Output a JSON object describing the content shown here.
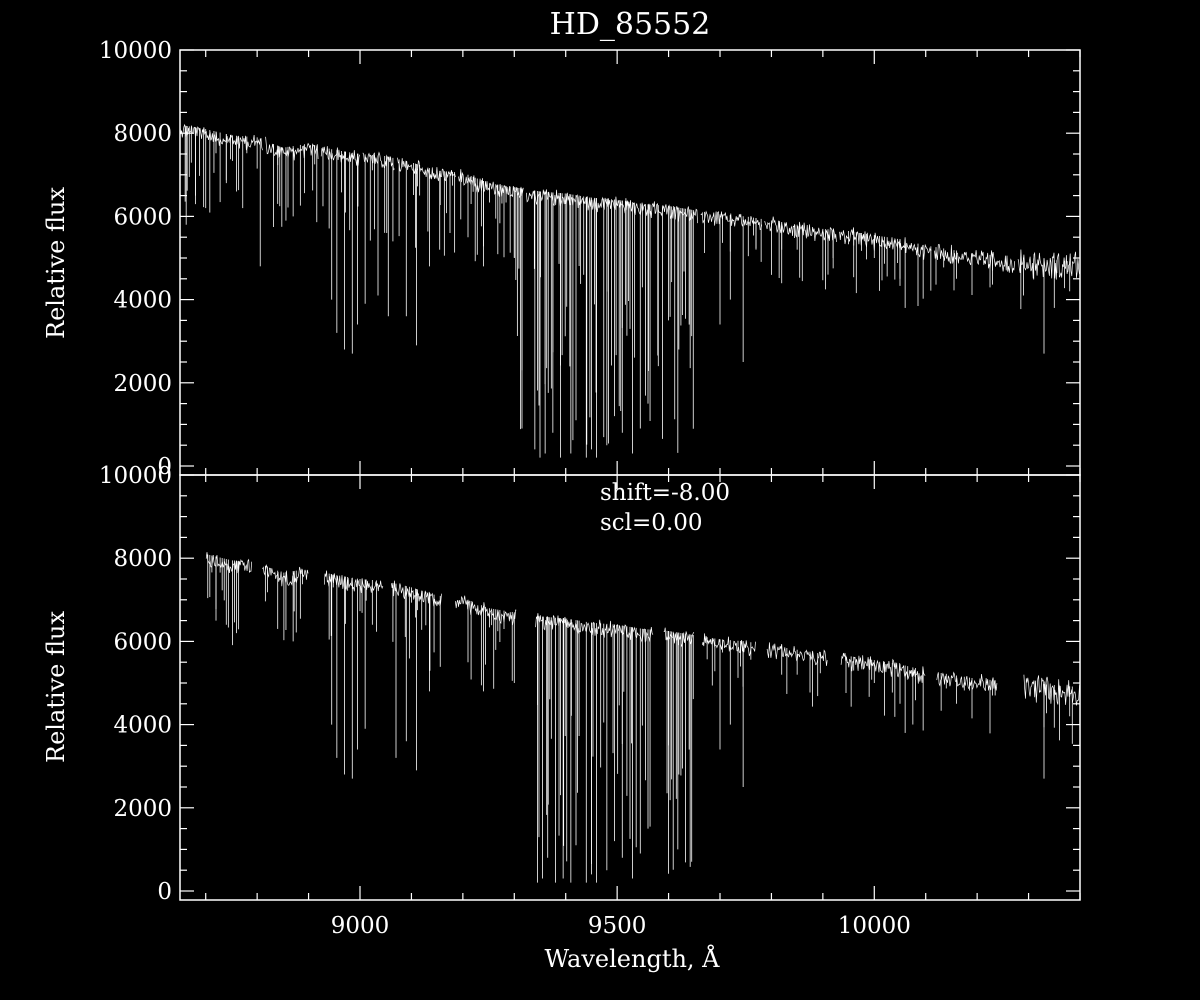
{
  "chart_data": {
    "type": "line",
    "title": "HD_85552",
    "xlabel": "Wavelength, Å",
    "xlim": [
      8650,
      10400
    ],
    "x_ticks": [
      9000,
      9500,
      10000
    ],
    "x_tick_labels": [
      "9000",
      "9500",
      "10000"
    ],
    "panels": [
      {
        "ylabel": "Relative flux",
        "ylim": [
          0,
          10000
        ],
        "y_ticks": [
          0,
          2000,
          4000,
          6000,
          8000,
          10000
        ],
        "y_tick_labels": [
          "0",
          "2000",
          "4000",
          "6000",
          "8000",
          "10000"
        ],
        "annotations": [],
        "gaps": [
          [
            8812,
            8816
          ],
          [
            8920,
            8924
          ],
          [
            9000,
            9004
          ],
          [
            9068,
            9072
          ],
          [
            9186,
            9190
          ],
          [
            9318,
            9322
          ],
          [
            9658,
            9662
          ],
          [
            9782,
            9786
          ],
          [
            9928,
            9932
          ],
          [
            10112,
            10116
          ],
          [
            10274,
            10278
          ]
        ],
        "continuum": {
          "x": [
            8650,
            8700,
            8750,
            8800,
            8850,
            8900,
            8950,
            9000,
            9050,
            9100,
            9150,
            9200,
            9250,
            9300,
            9350,
            9400,
            9450,
            9500,
            9550,
            9600,
            9650,
            9700,
            9750,
            9800,
            9850,
            9900,
            9950,
            10000,
            10050,
            10100,
            10150,
            10200,
            10250,
            10300,
            10350,
            10400
          ],
          "y": [
            8200,
            8100,
            7950,
            7900,
            7650,
            7750,
            7600,
            7500,
            7450,
            7300,
            7100,
            7050,
            6800,
            6700,
            6600,
            6550,
            6450,
            6400,
            6300,
            6250,
            6150,
            6050,
            6000,
            5900,
            5800,
            5700,
            5650,
            5550,
            5450,
            5300,
            5200,
            5100,
            5050,
            5000,
            4950,
            4900
          ]
        },
        "absorption_lines": {
          "x": [
            8662,
            8680,
            8700,
            8740,
            8760,
            8806,
            8840,
            8870,
            8945,
            8955,
            8970,
            8985,
            8995,
            9010,
            9035,
            9055,
            9070,
            9090,
            9110,
            9135,
            9155,
            9175,
            9210,
            9240,
            9300,
            9315,
            9320,
            9340,
            9350,
            9360,
            9375,
            9390,
            9410,
            9420,
            9440,
            9450,
            9460,
            9480,
            9495,
            9510,
            9530,
            9545,
            9560,
            9580,
            9600,
            9620,
            9640,
            9700,
            9720,
            9745,
            9770,
            9820,
            9850,
            9920,
            9960,
            10000,
            10050,
            10060,
            10160,
            10230,
            10290,
            10330,
            10350,
            10380
          ],
          "y": [
            5800,
            6500,
            6200,
            6800,
            6600,
            4800,
            6300,
            6000,
            4000,
            3200,
            2800,
            2700,
            3400,
            3900,
            4100,
            3600,
            3200,
            3600,
            2900,
            4800,
            5200,
            5600,
            5500,
            4800,
            5000,
            900,
            1200,
            400,
            200,
            300,
            800,
            200,
            300,
            1100,
            200,
            400,
            200,
            500,
            1200,
            800,
            300,
            900,
            1500,
            2400,
            3500,
            2800,
            3400,
            3400,
            4000,
            2500,
            5200,
            5200,
            5200,
            5000,
            5300,
            5000,
            4500,
            3800,
            4500,
            4700,
            4100,
            2700,
            3800,
            4200
          ]
        }
      },
      {
        "ylabel": "Relative flux",
        "ylim": [
          0,
          10000
        ],
        "y_ticks": [
          0,
          2000,
          4000,
          6000,
          8000,
          10000
        ],
        "y_tick_labels": [
          "0",
          "2000",
          "4000",
          "6000",
          "8000",
          "10000"
        ],
        "annotations": [
          "shift=-8.00",
          "scl=0.00"
        ],
        "gaps": [
          [
            8650,
            8700
          ],
          [
            8790,
            8810
          ],
          [
            8900,
            8930
          ],
          [
            9045,
            9060
          ],
          [
            9160,
            9185
          ],
          [
            9305,
            9340
          ],
          [
            9570,
            9590
          ],
          [
            9650,
            9665
          ],
          [
            9770,
            9790
          ],
          [
            9910,
            9935
          ],
          [
            10100,
            10120
          ],
          [
            10240,
            10290
          ]
        ],
        "continuum": {
          "x": [
            8650,
            8700,
            8750,
            8800,
            8850,
            8900,
            8950,
            9000,
            9050,
            9100,
            9150,
            9200,
            9250,
            9300,
            9350,
            9400,
            9450,
            9500,
            9550,
            9600,
            9650,
            9700,
            9750,
            9800,
            9850,
            9900,
            9950,
            10000,
            10050,
            10100,
            10150,
            10200,
            10250,
            10300,
            10350,
            10400
          ],
          "y": [
            8200,
            8100,
            7950,
            7900,
            7650,
            7750,
            7600,
            7500,
            7450,
            7300,
            7100,
            7050,
            6800,
            6700,
            6600,
            6550,
            6450,
            6400,
            6300,
            6250,
            6150,
            6050,
            6000,
            5900,
            5800,
            5700,
            5650,
            5550,
            5450,
            5300,
            5200,
            5100,
            5050,
            5000,
            4950,
            4900
          ]
        },
        "absorption_lines": {
          "x": [
            8720,
            8740,
            8760,
            8806,
            8840,
            8870,
            8945,
            8955,
            8970,
            8985,
            8995,
            9010,
            9070,
            9090,
            9110,
            9135,
            9210,
            9240,
            9300,
            9345,
            9355,
            9365,
            9380,
            9395,
            9410,
            9420,
            9440,
            9450,
            9460,
            9480,
            9495,
            9510,
            9530,
            9545,
            9560,
            9600,
            9620,
            9640,
            9700,
            9720,
            9745,
            9820,
            9850,
            9960,
            10000,
            10050,
            10060,
            10160,
            10230,
            10330,
            10380
          ],
          "y": [
            6500,
            6400,
            6200,
            4800,
            6300,
            6000,
            4000,
            3200,
            2800,
            2700,
            3400,
            3900,
            3200,
            3600,
            2900,
            4800,
            5500,
            4800,
            5000,
            200,
            300,
            800,
            200,
            300,
            200,
            1100,
            200,
            400,
            200,
            500,
            1200,
            800,
            300,
            900,
            1500,
            3500,
            2800,
            3400,
            3400,
            4000,
            2500,
            5200,
            5200,
            5300,
            5000,
            4500,
            3800,
            4500,
            4700,
            2700,
            4200
          ]
        }
      }
    ]
  }
}
